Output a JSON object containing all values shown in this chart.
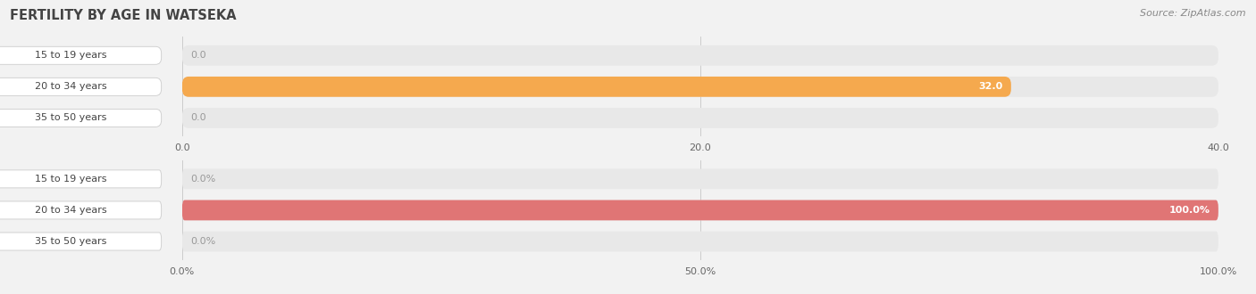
{
  "title": "FERTILITY BY AGE IN WATSEKA",
  "source_text": "Source: ZipAtlas.com",
  "top_chart": {
    "categories": [
      "15 to 19 years",
      "20 to 34 years",
      "35 to 50 years"
    ],
    "values": [
      0.0,
      32.0,
      0.0
    ],
    "max_val": 40.0,
    "xticks": [
      0.0,
      20.0,
      40.0
    ],
    "xticklabels": [
      "0.0",
      "20.0",
      "40.0"
    ],
    "bar_color": "#F5A94E",
    "bar_color_dim": "#F5CFA0",
    "bar_bg_color": "#E8E8E8",
    "value_labels": [
      "0.0",
      "32.0",
      "0.0"
    ],
    "label_inside_color": "#FFFFFF",
    "label_outside_color": "#999999"
  },
  "bottom_chart": {
    "categories": [
      "15 to 19 years",
      "20 to 34 years",
      "35 to 50 years"
    ],
    "values": [
      0.0,
      100.0,
      0.0
    ],
    "max_val": 100.0,
    "xticks": [
      0.0,
      50.0,
      100.0
    ],
    "xticklabels": [
      "0.0%",
      "50.0%",
      "100.0%"
    ],
    "bar_color": "#E07575",
    "bar_color_dim": "#EEAAAA",
    "bar_bg_color": "#E8E8E8",
    "value_labels": [
      "0.0%",
      "100.0%",
      "0.0%"
    ],
    "label_inside_color": "#FFFFFF",
    "label_outside_color": "#999999"
  },
  "title_fontsize": 10.5,
  "source_fontsize": 8,
  "label_fontsize": 8,
  "tick_fontsize": 8,
  "cat_fontsize": 8,
  "background_color": "#F2F2F2",
  "title_color": "#444444",
  "source_color": "#888888",
  "cat_label_color": "#444444",
  "grid_color": "#CCCCCC",
  "cat_pill_color": "#FFFFFF",
  "cat_pill_edge": "#CCCCCC"
}
